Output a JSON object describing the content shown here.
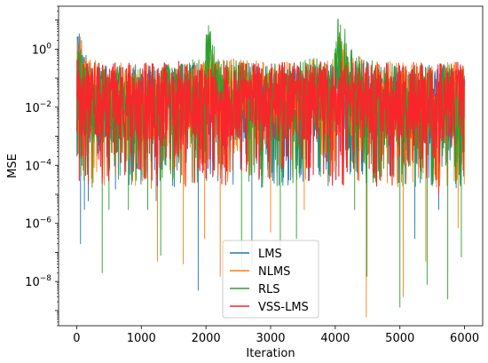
{
  "chart_data": {
    "type": "line",
    "title": "",
    "xlabel": "Iteration",
    "ylabel": "MSE",
    "xlim": [
      -280,
      6280
    ],
    "ylim": [
      3e-10,
      30
    ],
    "yscale": "log",
    "grid": false,
    "legend_position": "bottom-center",
    "x_ticks": [
      0,
      1000,
      2000,
      3000,
      4000,
      5000,
      6000
    ],
    "x_tick_labels": [
      "0",
      "1000",
      "2000",
      "3000",
      "4000",
      "5000",
      "6000"
    ],
    "y_ticks": [
      1,
      0.01,
      0.0001,
      1e-06,
      1e-08
    ],
    "y_tick_bases": [
      "10",
      "10",
      "10",
      "10",
      "10"
    ],
    "y_tick_exponents": [
      "0",
      "−2",
      "−4",
      "−6",
      "−8"
    ],
    "n_iterations": 6000,
    "series": [
      {
        "name": "LMS",
        "color": "#1f77b4",
        "upper_envelope": [
          [
            0,
            3.5
          ],
          [
            60,
            5.0
          ],
          [
            120,
            1.0
          ],
          [
            200,
            0.8
          ],
          [
            300,
            0.35
          ],
          [
            600,
            0.3
          ],
          [
            1000,
            0.3
          ],
          [
            1500,
            0.3
          ],
          [
            1990,
            0.35
          ],
          [
            2020,
            1.5
          ],
          [
            2100,
            0.5
          ],
          [
            2500,
            0.35
          ],
          [
            3000,
            0.3
          ],
          [
            3500,
            0.3
          ],
          [
            3990,
            0.4
          ],
          [
            4040,
            2.0
          ],
          [
            4200,
            0.5
          ],
          [
            5000,
            0.3
          ],
          [
            6000,
            0.3
          ]
        ],
        "deep_dips": [
          [
            80,
            0.0001
          ],
          [
            60,
            2e-07
          ],
          [
            120,
            3e-06
          ],
          [
            180,
            6e-06
          ],
          [
            1230,
            6e-06
          ],
          [
            1880,
            5e-09
          ],
          [
            2010,
            3e-05
          ],
          [
            2710,
            4e-08
          ],
          [
            4420,
            5e-05
          ],
          [
            5600,
            3e-06
          ],
          [
            5230,
            3e-07
          ]
        ]
      },
      {
        "name": "NLMS",
        "color": "#ff7f0e",
        "upper_envelope": [
          [
            0,
            2.5
          ],
          [
            60,
            3.0
          ],
          [
            150,
            0.5
          ],
          [
            300,
            0.4
          ],
          [
            1000,
            0.3
          ],
          [
            1990,
            0.4
          ],
          [
            2020,
            3.0
          ],
          [
            2150,
            0.6
          ],
          [
            3000,
            0.35
          ],
          [
            3990,
            0.5
          ],
          [
            4040,
            4.0
          ],
          [
            4250,
            0.6
          ],
          [
            5000,
            0.35
          ],
          [
            6000,
            0.35
          ]
        ],
        "deep_dips": [
          [
            1250,
            5e-08
          ],
          [
            1650,
            4e-08
          ],
          [
            1980,
            3e-07
          ],
          [
            2220,
            1.5e-08
          ],
          [
            3000,
            5e-07
          ],
          [
            3520,
            3e-06
          ],
          [
            4480,
            6e-10
          ],
          [
            5050,
            3e-09
          ],
          [
            5400,
            5e-08
          ],
          [
            5900,
            7e-07
          ]
        ]
      },
      {
        "name": "RLS",
        "color": "#2ca02c",
        "upper_envelope": [
          [
            0,
            1.5
          ],
          [
            200,
            0.3
          ],
          [
            1000,
            0.25
          ],
          [
            1980,
            0.5
          ],
          [
            2020,
            10.0
          ],
          [
            2100,
            2.5
          ],
          [
            2250,
            0.5
          ],
          [
            3000,
            0.3
          ],
          [
            3980,
            0.6
          ],
          [
            4030,
            15.0
          ],
          [
            4150,
            5.0
          ],
          [
            4300,
            0.6
          ],
          [
            5000,
            0.3
          ],
          [
            6000,
            0.3
          ]
        ],
        "deep_dips": [
          [
            395,
            2e-08
          ],
          [
            500,
            3e-06
          ],
          [
            800,
            3e-06
          ],
          [
            1100,
            3e-06
          ],
          [
            1300,
            8e-08
          ],
          [
            2550,
            3e-08
          ],
          [
            3150,
            1e-07
          ],
          [
            3400,
            3e-07
          ],
          [
            4300,
            3e-06
          ],
          [
            4490,
            1.5e-08
          ],
          [
            5000,
            1.3e-09
          ],
          [
            5420,
            8e-09
          ],
          [
            5740,
            2.5e-09
          ],
          [
            5950,
            7e-08
          ]
        ]
      },
      {
        "name": "VSS-LMS",
        "color": "#f8262b",
        "upper_envelope": [
          [
            0,
            0.8
          ],
          [
            100,
            0.4
          ],
          [
            1000,
            0.35
          ],
          [
            2000,
            0.4
          ],
          [
            3000,
            0.35
          ],
          [
            4000,
            0.4
          ],
          [
            5000,
            0.35
          ],
          [
            6000,
            0.35
          ]
        ],
        "deep_dips": [
          [
            40,
            3e-05
          ],
          [
            980,
            0.0001
          ],
          [
            2030,
            8e-05
          ],
          [
            3200,
            0.0001
          ],
          [
            4700,
            3e-05
          ],
          [
            5600,
            1e-05
          ]
        ]
      }
    ]
  }
}
